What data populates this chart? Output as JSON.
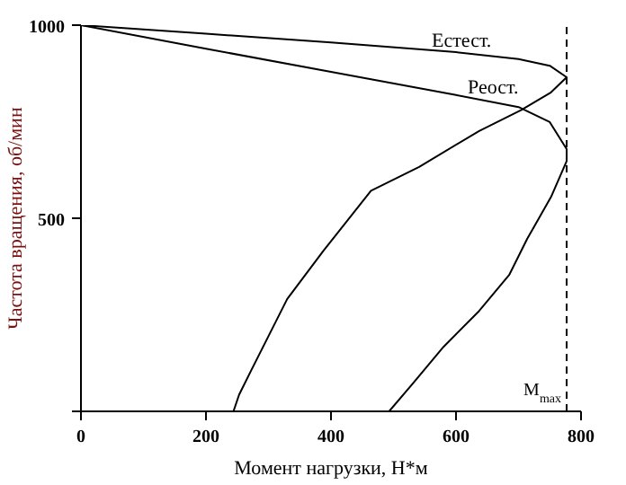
{
  "chart_data": {
    "type": "line",
    "xlabel": "Момент нагрузки, Н*м",
    "ylabel": "Частота вращения, об/мин",
    "xlim": [
      0,
      800
    ],
    "ylim": [
      0,
      1000
    ],
    "xticks": [
      0,
      200,
      400,
      600,
      800
    ],
    "yticks": [
      {
        "value": 0,
        "label": null
      },
      500,
      1000
    ],
    "marker": "none",
    "line_style": "solid",
    "series": [
      {
        "color": "#000000",
        "x": [
          0,
          200,
          400,
          600,
          700,
          750,
          777,
          752,
          704,
          637,
          541,
          464,
          388,
          330,
          272,
          253,
          244
        ],
        "values": [
          1000,
          978,
          955,
          930,
          912,
          895,
          865,
          826,
          780,
          726,
          633,
          571,
          416,
          291,
          105,
          43,
          0
        ]
      },
      {
        "color": "#000000",
        "x": [
          0,
          200,
          400,
          600,
          700,
          750,
          777,
          777,
          752,
          714,
          685,
          637,
          580,
          532,
          493
        ],
        "values": [
          1000,
          939,
          879,
          819,
          788,
          749,
          679,
          648,
          555,
          447,
          353,
          260,
          167,
          74,
          0
        ]
      }
    ],
    "ref_lines": [
      {
        "axis": "x",
        "value": 777,
        "label": "M$_{max}$",
        "line_style": "dashed",
        "color": "#000000"
      }
    ],
    "annotations": [
      "Естест.",
      "Реост."
    ]
  }
}
